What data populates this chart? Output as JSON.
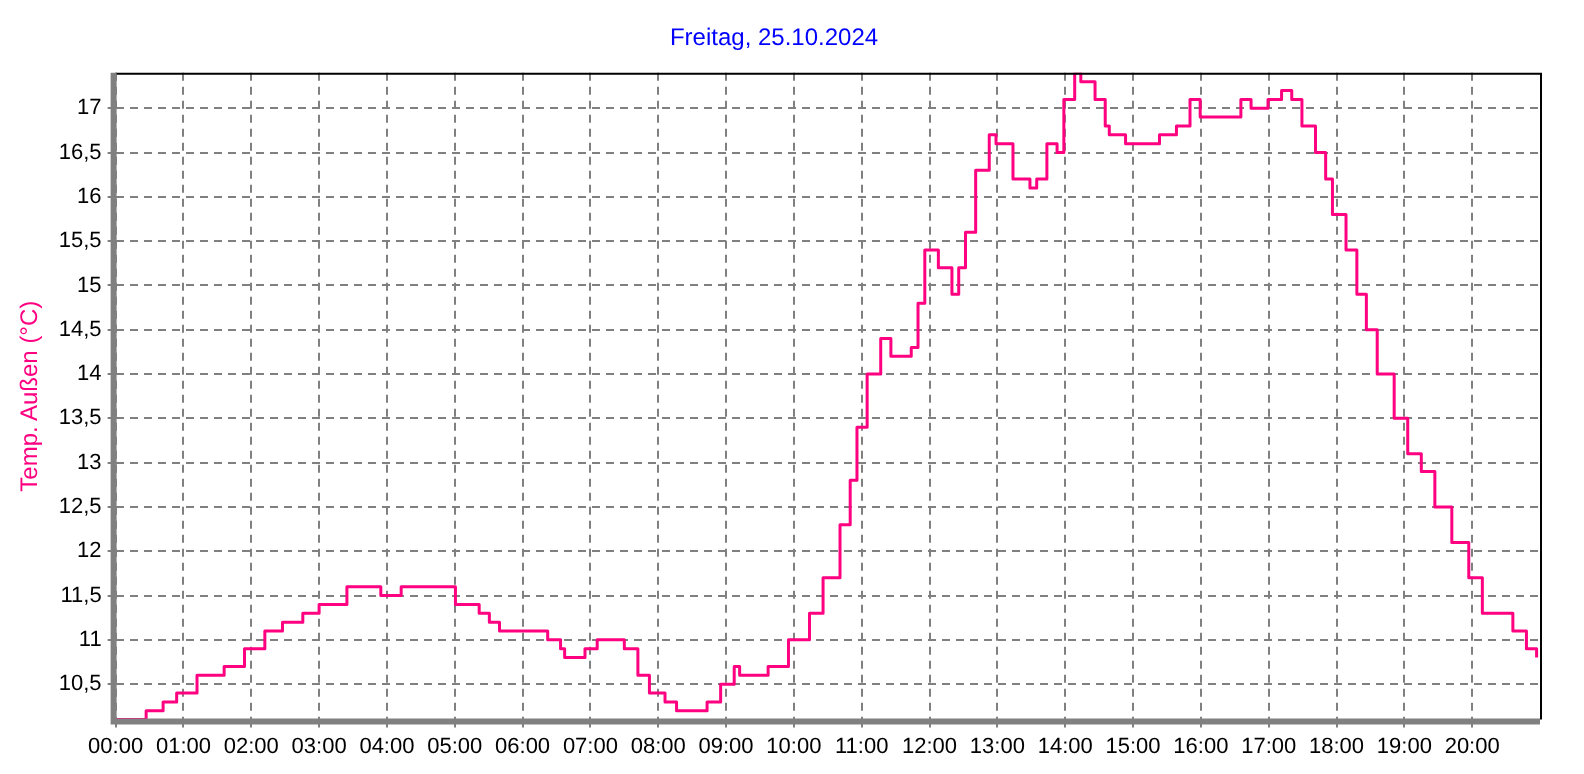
{
  "chart_data": {
    "type": "step",
    "title": "Freitag, 25.10.2024",
    "ylabel": "Temp. Außen (°C)",
    "x": [
      0,
      0.45,
      0.7,
      0.9,
      1.2,
      1.6,
      1.9,
      2.2,
      2.46,
      2.76,
      3.0,
      3.41,
      3.91,
      4.21,
      4.91,
      5.01,
      5.36,
      5.51,
      5.66,
      6.22,
      6.37,
      6.56,
      6.62,
      6.92,
      7.1,
      7.3,
      7.5,
      7.7,
      7.87,
      8.1,
      8.27,
      8.72,
      8.92,
      9.12,
      9.2,
      9.62,
      9.92,
      10.23,
      10.43,
      10.68,
      10.83,
      10.93,
      11.08,
      11.28,
      11.43,
      11.73,
      11.83,
      11.93,
      12.13,
      12.33,
      12.43,
      12.53,
      12.68,
      12.88,
      12.98,
      13.13,
      13.23,
      13.48,
      13.58,
      13.73,
      13.88,
      13.98,
      14.14,
      14.23,
      14.44,
      14.59,
      14.65,
      14.89,
      15.34,
      15.39,
      15.64,
      15.84,
      15.99,
      16.24,
      16.3,
      16.59,
      16.74,
      16.99,
      17.19,
      17.34,
      17.49,
      17.69,
      17.84,
      17.94,
      18.14,
      18.3,
      18.44,
      18.6,
      18.85,
      19.05,
      19.25,
      19.45,
      19.7,
      19.95,
      20.15,
      20.45,
      20.6,
      20.8,
      20.95
    ],
    "series": [
      {
        "color": "#ff0080",
        "values": [
          10.1,
          10.2,
          10.3,
          10.4,
          10.6,
          10.7,
          10.9,
          11.1,
          11.2,
          11.3,
          11.4,
          11.6,
          11.5,
          11.6,
          11.6,
          11.4,
          11.3,
          11.2,
          11.1,
          11.1,
          11.0,
          10.9,
          10.8,
          10.9,
          11.0,
          11.0,
          10.9,
          10.6,
          10.4,
          10.3,
          10.2,
          10.3,
          10.5,
          10.7,
          10.6,
          10.7,
          11.0,
          11.3,
          11.7,
          12.3,
          12.8,
          13.4,
          14.0,
          14.4,
          14.2,
          14.3,
          14.8,
          15.4,
          15.2,
          14.9,
          15.2,
          15.6,
          16.3,
          16.7,
          16.6,
          16.6,
          16.2,
          16.1,
          16.2,
          16.6,
          16.5,
          17.1,
          17.4,
          17.3,
          17.1,
          16.8,
          16.7,
          16.6,
          16.6,
          16.7,
          16.8,
          17.1,
          16.9,
          16.9,
          16.9,
          17.1,
          17.0,
          17.1,
          17.2,
          17.1,
          16.8,
          16.5,
          16.2,
          15.8,
          15.4,
          14.9,
          14.5,
          14.0,
          13.5,
          13.1,
          12.9,
          12.5,
          12.1,
          11.7,
          11.3,
          11.3,
          11.1,
          10.9,
          10.8
        ]
      }
    ],
    "xlim": [
      0,
      21
    ],
    "ylim": [
      10.1,
      17.4
    ],
    "xticks": [
      {
        "value": 0,
        "label": "00:00"
      },
      {
        "value": 1,
        "label": "01:00"
      },
      {
        "value": 2,
        "label": "02:00"
      },
      {
        "value": 3,
        "label": "03:00"
      },
      {
        "value": 4,
        "label": "04:00"
      },
      {
        "value": 5,
        "label": "05:00"
      },
      {
        "value": 6,
        "label": "06:00"
      },
      {
        "value": 7,
        "label": "07:00"
      },
      {
        "value": 8,
        "label": "08:00"
      },
      {
        "value": 9,
        "label": "09:00"
      },
      {
        "value": 10,
        "label": "10:00"
      },
      {
        "value": 11,
        "label": "11:00"
      },
      {
        "value": 12,
        "label": "12:00"
      },
      {
        "value": 13,
        "label": "13:00"
      },
      {
        "value": 14,
        "label": "14:00"
      },
      {
        "value": 15,
        "label": "15:00"
      },
      {
        "value": 16,
        "label": "16:00"
      },
      {
        "value": 17,
        "label": "17:00"
      },
      {
        "value": 18,
        "label": "18:00"
      },
      {
        "value": 19,
        "label": "19:00"
      },
      {
        "value": 20,
        "label": "20:00"
      }
    ],
    "yticks": [
      {
        "value": 10.5,
        "label": "10,5"
      },
      11,
      {
        "value": 11.5,
        "label": "11,5"
      },
      12,
      {
        "value": 12.5,
        "label": "12,5"
      },
      13,
      {
        "value": 13.5,
        "label": "13,5"
      },
      14,
      {
        "value": 14.5,
        "label": "14,5"
      },
      15,
      {
        "value": 15.5,
        "label": "15,5"
      },
      16,
      {
        "value": 16.5,
        "label": "16,5"
      },
      17
    ],
    "grid": true,
    "legend": false,
    "marker": "none",
    "line_style": "solid"
  }
}
